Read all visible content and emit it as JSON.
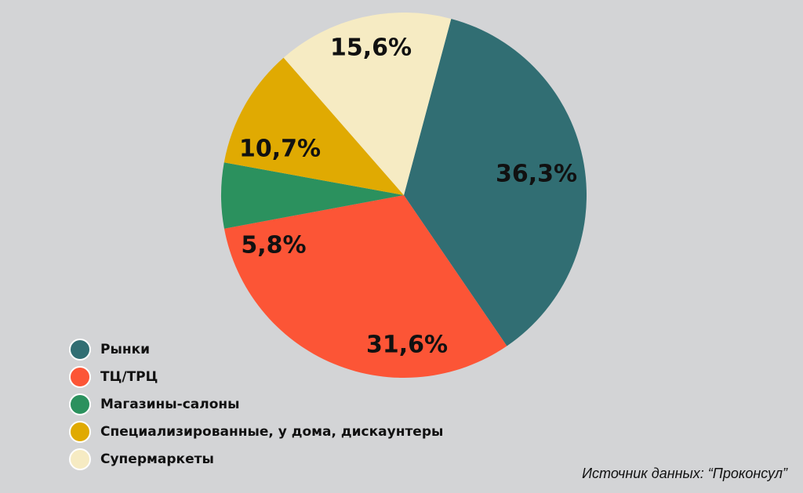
{
  "chart_data": {
    "type": "pie",
    "slices": [
      {
        "label": "Рынки",
        "value": 36.3,
        "display": "36,3%",
        "color": "#316e73"
      },
      {
        "label": "ТЦ/ТРЦ",
        "value": 31.6,
        "display": "31,6%",
        "color": "#fc5536"
      },
      {
        "label": "Магазины-салоны",
        "value": 5.8,
        "display": "5,8%",
        "color": "#2b915e"
      },
      {
        "label": "Специализированные, у дома, дискаунтеры",
        "value": 10.7,
        "display": "10,7%",
        "color": "#e0aa02"
      },
      {
        "label": "Супермаркеты",
        "value": 15.6,
        "display": "15,6%",
        "color": "#f6ebc3"
      }
    ],
    "legend_position": "bottom-left"
  },
  "source": "Источник данных: “Проконсул”"
}
